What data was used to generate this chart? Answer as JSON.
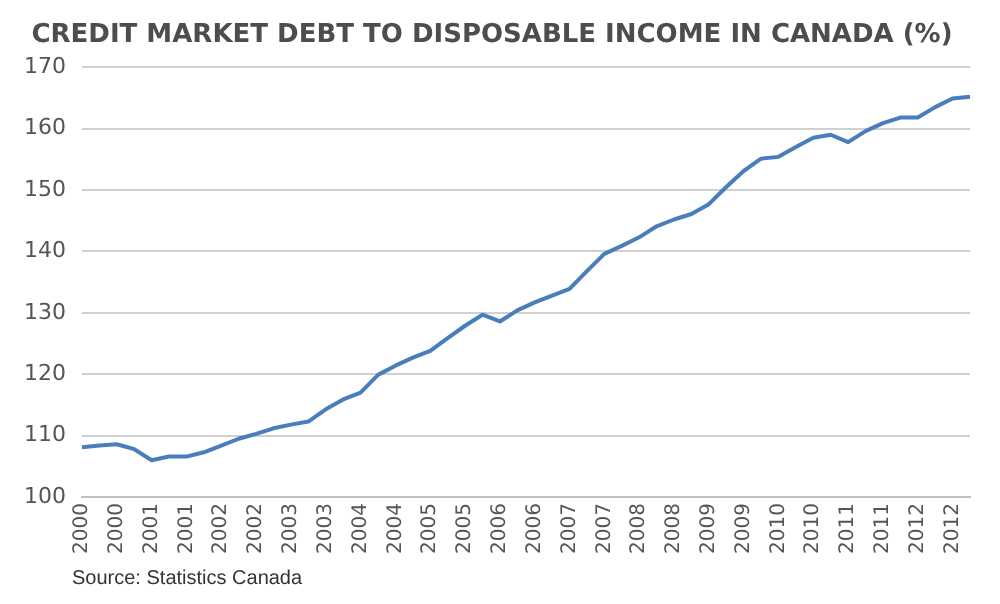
{
  "chart_data": {
    "type": "line",
    "title": "CREDIT MARKET DEBT TO DISPOSABLE INCOME IN CANADA (%)",
    "categories": [
      "2000",
      null,
      "2000",
      null,
      "2001",
      null,
      "2001",
      null,
      "2002",
      null,
      "2002",
      null,
      "2003",
      null,
      "2003",
      null,
      "2004",
      null,
      "2004",
      null,
      "2005",
      null,
      "2005",
      null,
      "2006",
      null,
      "2006",
      null,
      "2007",
      null,
      "2007",
      null,
      "2008",
      null,
      "2008",
      null,
      "2009",
      null,
      "2009",
      null,
      "2010",
      null,
      "2010",
      null,
      "2011",
      null,
      "2011",
      null,
      "2012",
      null,
      "2012",
      null
    ],
    "series": [
      {
        "color": "#4a7ebb",
        "values": [
          108.1,
          108.4,
          108.6,
          107.8,
          106.0,
          106.6,
          106.6,
          107.3,
          108.4,
          109.5,
          110.3,
          111.2,
          111.8,
          112.3,
          114.3,
          115.9,
          117.0,
          119.9,
          121.4,
          122.7,
          123.8,
          125.9,
          127.9,
          129.7,
          128.6,
          130.4,
          131.7,
          132.8,
          133.9,
          136.8,
          139.6,
          140.9,
          142.3,
          144.1,
          145.2,
          146.1,
          147.7,
          150.5,
          153.1,
          155.1,
          155.4,
          157.0,
          158.5,
          159.0,
          157.8,
          159.6,
          160.9,
          161.8,
          161.8,
          163.5,
          164.9,
          165.2
        ]
      }
    ],
    "ylim": [
      100,
      170
    ],
    "yticks": [
      100,
      110,
      120,
      130,
      140,
      150,
      160,
      170
    ],
    "grid": "y",
    "legend": false,
    "marker": "none",
    "line_style": "solid",
    "annotations": [
      "Source: Statistics Canada"
    ]
  }
}
